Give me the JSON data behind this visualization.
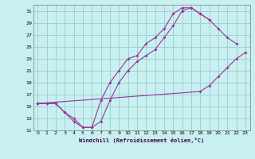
{
  "xlabel": "Windchill (Refroidissement éolien,°C)",
  "background_color": "#c8f0f0",
  "grid_color": "#a0d0d0",
  "line_color": "#993399",
  "xlim": [
    -0.5,
    23.5
  ],
  "ylim": [
    11,
    32
  ],
  "xticks": [
    0,
    1,
    2,
    3,
    4,
    5,
    6,
    7,
    8,
    9,
    10,
    11,
    12,
    13,
    14,
    15,
    16,
    17,
    18,
    19,
    20,
    21,
    22,
    23
  ],
  "yticks": [
    11,
    13,
    15,
    17,
    19,
    21,
    23,
    25,
    27,
    29,
    31
  ],
  "curve1_x": [
    0,
    1,
    2,
    3,
    4,
    5,
    6,
    7,
    8,
    9,
    10,
    11,
    12,
    13,
    14,
    15,
    16,
    17,
    18,
    19,
    20,
    21,
    22
  ],
  "curve1_y": [
    15.5,
    15.5,
    15.5,
    14.0,
    13.0,
    11.5,
    11.5,
    16.0,
    19.0,
    21.0,
    23.0,
    23.5,
    25.5,
    26.5,
    28.0,
    30.5,
    31.5,
    31.5,
    30.5,
    29.5,
    28.0,
    26.5,
    25.5
  ],
  "curve2_x": [
    0,
    1,
    2,
    3,
    4,
    5,
    6,
    7,
    8,
    9,
    10,
    11,
    12,
    13,
    14,
    15,
    16,
    17,
    18,
    19
  ],
  "curve2_y": [
    15.5,
    15.5,
    15.5,
    14.0,
    12.5,
    11.5,
    11.5,
    12.5,
    16.0,
    19.0,
    21.0,
    22.5,
    23.5,
    24.5,
    26.5,
    28.5,
    31.0,
    31.5,
    30.5,
    29.5
  ],
  "curve3_x": [
    0,
    18,
    19,
    20,
    21,
    22,
    23
  ],
  "curve3_y": [
    15.5,
    17.5,
    18.5,
    20.0,
    21.5,
    23.0,
    24.0
  ]
}
